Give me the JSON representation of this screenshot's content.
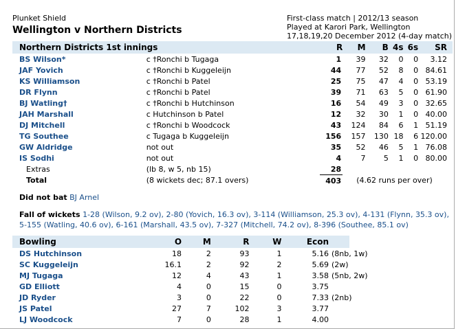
{
  "header": {
    "series": "Plunket Shield",
    "match_title": "Wellington v Northern Districts",
    "info_line1": "First-class match | 2012/13 season",
    "info_line2": "Played at Karori Park, Wellington",
    "info_line3": "17,18,19,20 December 2012 (4-day match)"
  },
  "batting": {
    "title": "Northern Districts 1st innings",
    "columns": [
      "R",
      "M",
      "B",
      "4s",
      "6s",
      "SR"
    ],
    "rows": [
      {
        "name": "BS Wilson*",
        "dismissal": "c †Ronchi b Tugaga",
        "r": "1",
        "m": "39",
        "b": "32",
        "fours": "0",
        "sixes": "0",
        "sr": "3.12"
      },
      {
        "name": "JAF Yovich",
        "dismissal": "c †Ronchi b Kuggeleijn",
        "r": "44",
        "m": "77",
        "b": "52",
        "fours": "8",
        "sixes": "0",
        "sr": "84.61"
      },
      {
        "name": "KS Williamson",
        "dismissal": "c †Ronchi b Patel",
        "r": "25",
        "m": "75",
        "b": "47",
        "fours": "4",
        "sixes": "0",
        "sr": "53.19"
      },
      {
        "name": "DR Flynn",
        "dismissal": "c †Ronchi b Patel",
        "r": "39",
        "m": "71",
        "b": "63",
        "fours": "5",
        "sixes": "0",
        "sr": "61.90"
      },
      {
        "name": "BJ Watling†",
        "dismissal": "c †Ronchi b Hutchinson",
        "r": "16",
        "m": "54",
        "b": "49",
        "fours": "3",
        "sixes": "0",
        "sr": "32.65"
      },
      {
        "name": "JAH Marshall",
        "dismissal": "c Hutchinson b Patel",
        "r": "12",
        "m": "32",
        "b": "30",
        "fours": "1",
        "sixes": "0",
        "sr": "40.00"
      },
      {
        "name": "DJ Mitchell",
        "dismissal": "c †Ronchi b Woodcock",
        "r": "43",
        "m": "124",
        "b": "84",
        "fours": "6",
        "sixes": "1",
        "sr": "51.19"
      },
      {
        "name": "TG Southee",
        "dismissal": "c Tugaga b Kuggeleijn",
        "r": "156",
        "m": "157",
        "b": "130",
        "fours": "18",
        "sixes": "6",
        "sr": "120.00"
      },
      {
        "name": "GW Aldridge",
        "dismissal": "not out",
        "r": "35",
        "m": "52",
        "b": "46",
        "fours": "5",
        "sixes": "1",
        "sr": "76.08"
      },
      {
        "name": "IS Sodhi",
        "dismissal": "not out",
        "r": "4",
        "m": "7",
        "b": "5",
        "fours": "1",
        "sixes": "0",
        "sr": "80.00"
      }
    ],
    "extras_label": "Extras",
    "extras_detail": "(lb 8, w 5, nb 15)",
    "extras_runs": "28",
    "total_label": "Total",
    "total_detail": "(8 wickets dec; 87.1 overs)",
    "total_runs": "403",
    "run_rate": "(4.62 runs per over)"
  },
  "did_not_bat": {
    "label": "Did not bat",
    "player": "BJ Arnel"
  },
  "fall_of_wickets": {
    "label": "Fall of wickets",
    "line1": "1-28 (Wilson, 9.2 ov), 2-80 (Yovich, 16.3 ov), 3-114 (Williamson, 25.3 ov), 4-131 (Flynn, 35.3 ov),",
    "line2": "5-155 (Watling, 40.6 ov), 6-161 (Marshall, 43.5 ov), 7-327 (Mitchell, 74.2 ov), 8-396 (Southee, 85.1 ov)"
  },
  "bowling": {
    "title": "Bowling",
    "columns": [
      "O",
      "M",
      "R",
      "W",
      "Econ"
    ],
    "rows": [
      {
        "name": "DS Hutchinson",
        "o": "18",
        "m": "2",
        "r": "93",
        "w": "1",
        "econ": "5.16",
        "extras": "(8nb, 1w)"
      },
      {
        "name": "SC Kuggeleijn",
        "o": "16.1",
        "m": "2",
        "r": "92",
        "w": "2",
        "econ": "5.69",
        "extras": "(2w)"
      },
      {
        "name": "MJ Tugaga",
        "o": "12",
        "m": "4",
        "r": "43",
        "w": "1",
        "econ": "3.58",
        "extras": "(5nb, 2w)"
      },
      {
        "name": "GD Elliott",
        "o": "4",
        "m": "0",
        "r": "15",
        "w": "0",
        "econ": "3.75",
        "extras": ""
      },
      {
        "name": "JD Ryder",
        "o": "3",
        "m": "0",
        "r": "22",
        "w": "0",
        "econ": "7.33",
        "extras": "(2nb)"
      },
      {
        "name": "JS Patel",
        "o": "27",
        "m": "7",
        "r": "102",
        "w": "3",
        "econ": "3.77",
        "extras": ""
      },
      {
        "name": "LJ Woodcock",
        "o": "7",
        "m": "0",
        "r": "28",
        "w": "1",
        "econ": "4.00",
        "extras": ""
      }
    ]
  }
}
